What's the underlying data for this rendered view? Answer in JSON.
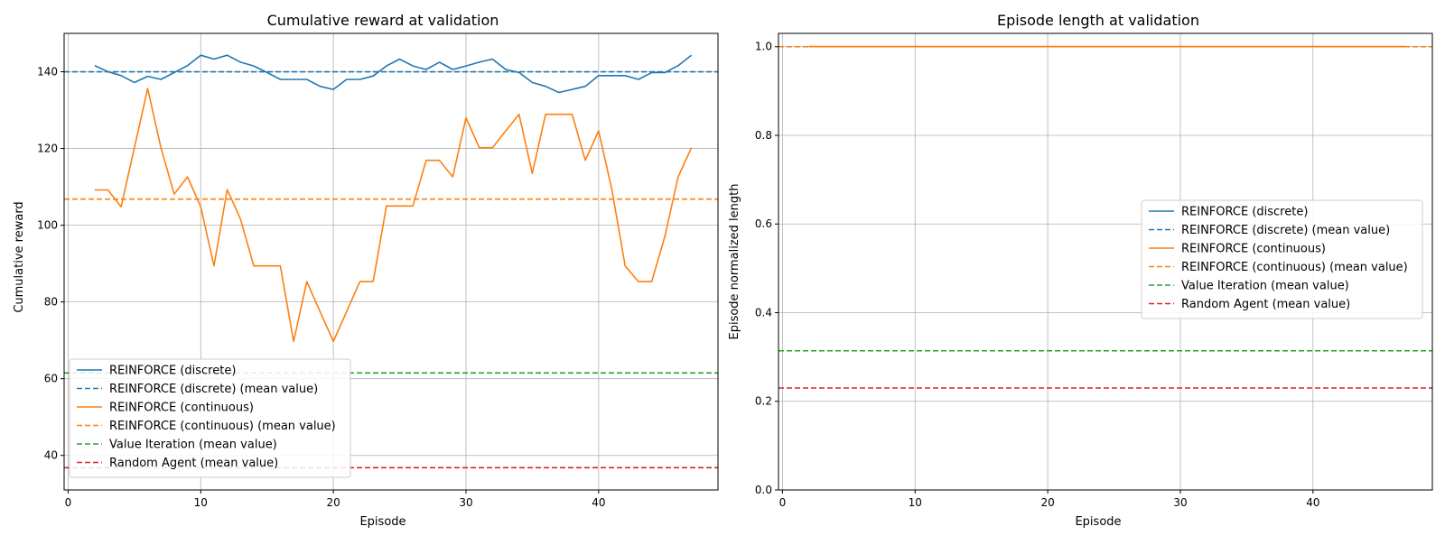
{
  "colors": {
    "blue": "#1f77b4",
    "orange": "#ff7f0e",
    "green": "#2ca02c",
    "red": "#d62728",
    "grid": "#b0b0b0"
  },
  "chart_data": [
    {
      "type": "line",
      "title": "Cumulative reward at validation",
      "xlabel": "Episode",
      "ylabel": "Cumulative reward",
      "xlim": [
        -0.3,
        49
      ],
      "ylim": [
        31,
        150
      ],
      "xticks": [
        0,
        10,
        20,
        30,
        40
      ],
      "yticks": [
        40,
        60,
        80,
        100,
        120,
        140
      ],
      "grid": true,
      "legend": {
        "placement": "lower-left",
        "entries": [
          {
            "label": "REINFORCE (discrete)",
            "color": "#1f77b4",
            "style": "solid"
          },
          {
            "label": "REINFORCE (discrete) (mean value)",
            "color": "#1f77b4",
            "style": "dashed"
          },
          {
            "label": "REINFORCE (continuous)",
            "color": "#ff7f0e",
            "style": "solid"
          },
          {
            "label": "REINFORCE (continuous) (mean value)",
            "color": "#ff7f0e",
            "style": "dashed"
          },
          {
            "label": "Value Iteration (mean value)",
            "color": "#2ca02c",
            "style": "dashed"
          },
          {
            "label": "Random Agent (mean value)",
            "color": "#d62728",
            "style": "dashed"
          }
        ]
      },
      "x": [
        2,
        3,
        4,
        5,
        6,
        7,
        8,
        9,
        10,
        11,
        12,
        13,
        14,
        15,
        16,
        17,
        18,
        19,
        20,
        21,
        22,
        23,
        24,
        25,
        26,
        27,
        28,
        29,
        30,
        31,
        32,
        33,
        34,
        35,
        36,
        37,
        38,
        39,
        40,
        41,
        42,
        43,
        44,
        45,
        46,
        47
      ],
      "series": [
        {
          "name": "REINFORCE (discrete)",
          "color": "#1f77b4",
          "style": "solid",
          "values": [
            141.6,
            140.0,
            139.0,
            137.2,
            138.8,
            138.0,
            139.8,
            141.6,
            144.3,
            143.3,
            144.3,
            142.5,
            141.5,
            139.8,
            138.0,
            138.0,
            138.0,
            136.2,
            135.4,
            138.0,
            138.0,
            138.9,
            141.5,
            143.3,
            141.5,
            140.6,
            142.5,
            140.6,
            141.5,
            142.5,
            143.3,
            140.6,
            139.8,
            137.2,
            136.2,
            134.6,
            135.4,
            136.2,
            139.0,
            139.0,
            139.0,
            138.0,
            139.8,
            139.8,
            141.6,
            144.3
          ]
        },
        {
          "name": "REINFORCE (discrete) (mean value)",
          "color": "#1f77b4",
          "style": "dashed",
          "constant": 140.0
        },
        {
          "name": "REINFORCE (continuous)",
          "color": "#ff7f0e",
          "style": "solid",
          "values": [
            109.2,
            109.2,
            104.8,
            120.2,
            135.6,
            120.2,
            108.1,
            112.6,
            104.8,
            89.4,
            109.3,
            101.6,
            89.4,
            89.4,
            89.4,
            69.7,
            85.3,
            77.5,
            69.7,
            77.5,
            85.3,
            85.3,
            105.0,
            105.0,
            105.0,
            116.9,
            116.9,
            112.6,
            128.0,
            120.2,
            120.2,
            124.6,
            128.9,
            113.5,
            128.9,
            128.9,
            128.9,
            116.9,
            124.6,
            109.3,
            89.4,
            85.3,
            85.3,
            97.2,
            112.6,
            120.2
          ]
        },
        {
          "name": "REINFORCE (continuous) (mean value)",
          "color": "#ff7f0e",
          "style": "dashed",
          "constant": 106.8
        },
        {
          "name": "Value Iteration (mean value)",
          "color": "#2ca02c",
          "style": "dashed",
          "constant": 61.5
        },
        {
          "name": "Random Agent (mean value)",
          "color": "#d62728",
          "style": "dashed",
          "constant": 36.8
        }
      ]
    },
    {
      "type": "line",
      "title": "Episode length at validation",
      "xlabel": "Episode",
      "ylabel": "Episode normalized length",
      "xlim": [
        -0.3,
        49
      ],
      "ylim": [
        0.0,
        1.03
      ],
      "xticks": [
        0,
        10,
        20,
        30,
        40
      ],
      "yticks": [
        0.0,
        0.2,
        0.4,
        0.6,
        0.8,
        1.0
      ],
      "ytick_labels": [
        "0.0",
        "0.2",
        "0.4",
        "0.6",
        "0.8",
        "1.0"
      ],
      "grid": true,
      "legend": {
        "placement": "center-right",
        "entries": [
          {
            "label": "REINFORCE (discrete)",
            "color": "#1f77b4",
            "style": "solid"
          },
          {
            "label": "REINFORCE (discrete) (mean value)",
            "color": "#1f77b4",
            "style": "dashed"
          },
          {
            "label": "REINFORCE (continuous)",
            "color": "#ff7f0e",
            "style": "solid"
          },
          {
            "label": "REINFORCE (continuous) (mean value)",
            "color": "#ff7f0e",
            "style": "dashed"
          },
          {
            "label": "Value Iteration (mean value)",
            "color": "#2ca02c",
            "style": "dashed"
          },
          {
            "label": "Random Agent (mean value)",
            "color": "#d62728",
            "style": "dashed"
          }
        ]
      },
      "x": [
        2,
        3,
        4,
        5,
        6,
        7,
        8,
        9,
        10,
        11,
        12,
        13,
        14,
        15,
        16,
        17,
        18,
        19,
        20,
        21,
        22,
        23,
        24,
        25,
        26,
        27,
        28,
        29,
        30,
        31,
        32,
        33,
        34,
        35,
        36,
        37,
        38,
        39,
        40,
        41,
        42,
        43,
        44,
        45,
        46,
        47
      ],
      "series": [
        {
          "name": "REINFORCE (discrete)",
          "color": "#1f77b4",
          "style": "solid",
          "values": [
            1.0,
            1.0,
            1.0,
            1.0,
            1.0,
            1.0,
            1.0,
            1.0,
            1.0,
            1.0,
            1.0,
            1.0,
            1.0,
            1.0,
            1.0,
            1.0,
            1.0,
            1.0,
            1.0,
            1.0,
            1.0,
            1.0,
            1.0,
            1.0,
            1.0,
            1.0,
            1.0,
            1.0,
            1.0,
            1.0,
            1.0,
            1.0,
            1.0,
            1.0,
            1.0,
            1.0,
            1.0,
            1.0,
            1.0,
            1.0,
            1.0,
            1.0,
            1.0,
            1.0,
            1.0,
            1.0
          ]
        },
        {
          "name": "REINFORCE (discrete) (mean value)",
          "color": "#1f77b4",
          "style": "dashed",
          "constant": 1.0
        },
        {
          "name": "REINFORCE (continuous)",
          "color": "#ff7f0e",
          "style": "solid",
          "values": [
            1.0,
            1.0,
            1.0,
            1.0,
            1.0,
            1.0,
            1.0,
            1.0,
            1.0,
            1.0,
            1.0,
            1.0,
            1.0,
            1.0,
            1.0,
            1.0,
            1.0,
            1.0,
            1.0,
            1.0,
            1.0,
            1.0,
            1.0,
            1.0,
            1.0,
            1.0,
            1.0,
            1.0,
            1.0,
            1.0,
            1.0,
            1.0,
            1.0,
            1.0,
            1.0,
            1.0,
            1.0,
            1.0,
            1.0,
            1.0,
            1.0,
            1.0,
            1.0,
            1.0,
            1.0,
            1.0
          ]
        },
        {
          "name": "REINFORCE (continuous) (mean value)",
          "color": "#ff7f0e",
          "style": "dashed",
          "constant": 1.0
        },
        {
          "name": "Value Iteration (mean value)",
          "color": "#2ca02c",
          "style": "dashed",
          "constant": 0.314
        },
        {
          "name": "Random Agent (mean value)",
          "color": "#d62728",
          "style": "dashed",
          "constant": 0.23
        }
      ]
    }
  ]
}
